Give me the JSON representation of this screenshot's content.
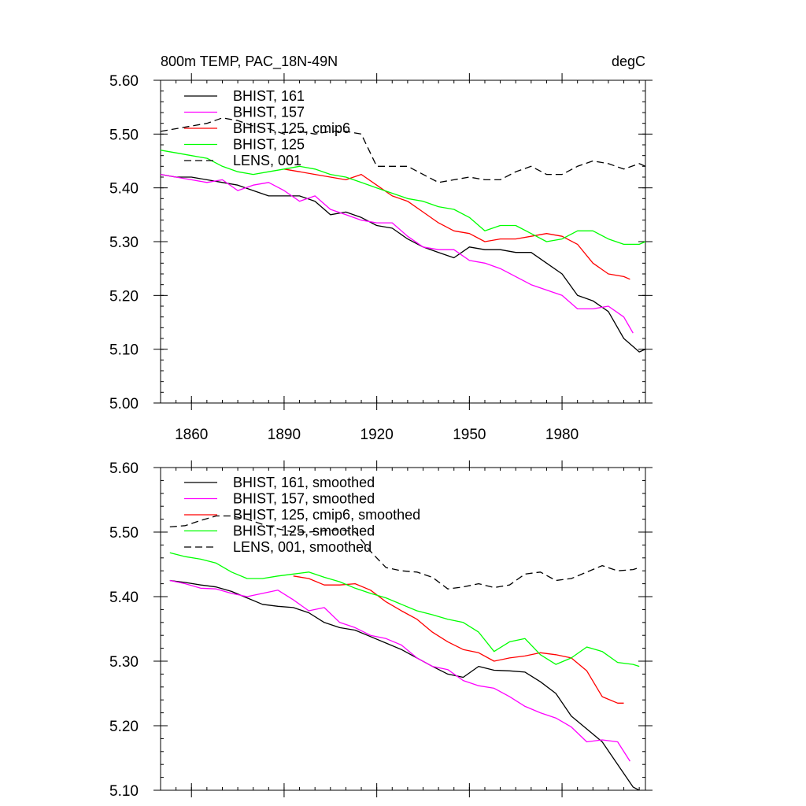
{
  "chart_data": [
    {
      "type": "line",
      "title": "800m TEMP, PAC_18N-49N",
      "units": "degC",
      "xlim": [
        1850,
        2007
      ],
      "ylim": [
        5.0,
        5.6
      ],
      "xticks": [
        1860,
        1890,
        1920,
        1950,
        1980
      ],
      "xticklabels": [
        "1860",
        "1890",
        "1920",
        "1950",
        "1980"
      ],
      "yticks": [
        5.0,
        5.1,
        5.2,
        5.3,
        5.4,
        5.5,
        5.6
      ],
      "yticklabels": [
        "5.00",
        "5.10",
        "5.20",
        "5.30",
        "5.40",
        "5.50",
        "5.60"
      ],
      "legend_position": "top-left",
      "series": [
        {
          "name": "BHIST, 161",
          "color": "#000000",
          "dash": "solid",
          "x": [
            1850,
            1855,
            1860,
            1865,
            1870,
            1875,
            1880,
            1885,
            1890,
            1895,
            1900,
            1905,
            1910,
            1915,
            1920,
            1925,
            1930,
            1935,
            1940,
            1945,
            1950,
            1955,
            1960,
            1965,
            1970,
            1975,
            1980,
            1985,
            1990,
            1995,
            2000,
            2005,
            2007
          ],
          "values": [
            5.425,
            5.42,
            5.42,
            5.415,
            5.41,
            5.405,
            5.395,
            5.385,
            5.385,
            5.385,
            5.375,
            5.35,
            5.355,
            5.345,
            5.33,
            5.325,
            5.305,
            5.29,
            5.28,
            5.27,
            5.29,
            5.285,
            5.285,
            5.28,
            5.28,
            5.26,
            5.24,
            5.2,
            5.19,
            5.17,
            5.12,
            5.095,
            5.1
          ]
        },
        {
          "name": "BHIST, 157",
          "color": "#ff00ff",
          "dash": "solid",
          "x": [
            1850,
            1855,
            1860,
            1865,
            1870,
            1875,
            1880,
            1885,
            1890,
            1895,
            1900,
            1905,
            1910,
            1915,
            1920,
            1925,
            1930,
            1935,
            1940,
            1945,
            1950,
            1955,
            1960,
            1965,
            1970,
            1975,
            1980,
            1985,
            1990,
            1995,
            2000,
            2003
          ],
          "values": [
            5.425,
            5.42,
            5.415,
            5.41,
            5.415,
            5.395,
            5.405,
            5.41,
            5.395,
            5.375,
            5.385,
            5.36,
            5.35,
            5.34,
            5.335,
            5.335,
            5.31,
            5.29,
            5.285,
            5.285,
            5.265,
            5.26,
            5.25,
            5.235,
            5.22,
            5.21,
            5.2,
            5.175,
            5.175,
            5.18,
            5.16,
            5.13
          ]
        },
        {
          "name": "BHIST, 125, cmip6",
          "color": "#ff0000",
          "dash": "solid",
          "x": [
            1890,
            1895,
            1900,
            1905,
            1910,
            1915,
            1920,
            1925,
            1930,
            1935,
            1940,
            1945,
            1950,
            1955,
            1960,
            1965,
            1970,
            1975,
            1980,
            1985,
            1990,
            1995,
            2000,
            2002
          ],
          "values": [
            5.435,
            5.43,
            5.425,
            5.42,
            5.415,
            5.425,
            5.405,
            5.385,
            5.375,
            5.355,
            5.335,
            5.32,
            5.315,
            5.3,
            5.305,
            5.305,
            5.31,
            5.315,
            5.31,
            5.295,
            5.26,
            5.24,
            5.235,
            5.23
          ]
        },
        {
          "name": "BHIST, 125",
          "color": "#00ff00",
          "dash": "solid",
          "x": [
            1850,
            1855,
            1860,
            1865,
            1870,
            1875,
            1880,
            1885,
            1890,
            1895,
            1900,
            1905,
            1910,
            1915,
            1920,
            1925,
            1930,
            1935,
            1940,
            1945,
            1950,
            1955,
            1960,
            1965,
            1970,
            1975,
            1980,
            1985,
            1990,
            1995,
            2000,
            2005,
            2007
          ],
          "values": [
            5.47,
            5.465,
            5.46,
            5.455,
            5.44,
            5.43,
            5.425,
            5.43,
            5.435,
            5.44,
            5.435,
            5.425,
            5.42,
            5.41,
            5.4,
            5.39,
            5.38,
            5.375,
            5.365,
            5.36,
            5.345,
            5.32,
            5.33,
            5.33,
            5.315,
            5.3,
            5.305,
            5.32,
            5.32,
            5.305,
            5.295,
            5.295,
            5.3
          ]
        },
        {
          "name": "LENS, 001",
          "color": "#000000",
          "dash": "dashed",
          "x": [
            1850,
            1855,
            1860,
            1865,
            1870,
            1875,
            1880,
            1885,
            1890,
            1895,
            1900,
            1905,
            1910,
            1915,
            1920,
            1925,
            1930,
            1935,
            1940,
            1945,
            1950,
            1955,
            1960,
            1965,
            1970,
            1975,
            1980,
            1985,
            1990,
            1995,
            2000,
            2005,
            2007
          ],
          "values": [
            5.505,
            5.51,
            5.515,
            5.52,
            5.53,
            5.525,
            5.515,
            5.51,
            5.5,
            5.505,
            5.5,
            5.505,
            5.505,
            5.5,
            5.44,
            5.44,
            5.44,
            5.425,
            5.41,
            5.415,
            5.42,
            5.415,
            5.415,
            5.43,
            5.44,
            5.425,
            5.425,
            5.44,
            5.45,
            5.445,
            5.435,
            5.445,
            5.44
          ]
        }
      ]
    },
    {
      "type": "line",
      "title": "",
      "xlim": [
        1850,
        2007
      ],
      "ylim": [
        5.1,
        5.6
      ],
      "xticks": [
        1860,
        1890,
        1920,
        1950,
        1980
      ],
      "yticks": [
        5.1,
        5.2,
        5.3,
        5.4,
        5.5,
        5.6
      ],
      "yticklabels": [
        "5.10",
        "5.20",
        "5.30",
        "5.40",
        "5.50",
        "5.60"
      ],
      "legend_position": "top-left",
      "series": [
        {
          "name": "BHIST, 161, smoothed",
          "color": "#000000",
          "dash": "solid",
          "x": [
            1853,
            1858,
            1863,
            1868,
            1873,
            1878,
            1883,
            1888,
            1893,
            1898,
            1903,
            1908,
            1913,
            1918,
            1923,
            1928,
            1933,
            1938,
            1943,
            1948,
            1953,
            1958,
            1963,
            1968,
            1973,
            1978,
            1983,
            1988,
            1993,
            1998,
            2003,
            2005
          ],
          "values": [
            5.425,
            5.422,
            5.418,
            5.415,
            5.408,
            5.398,
            5.388,
            5.385,
            5.383,
            5.375,
            5.36,
            5.352,
            5.348,
            5.338,
            5.328,
            5.318,
            5.305,
            5.292,
            5.28,
            5.275,
            5.292,
            5.286,
            5.285,
            5.283,
            5.268,
            5.25,
            5.215,
            5.195,
            5.175,
            5.14,
            5.105,
            5.1
          ]
        },
        {
          "name": "BHIST, 157, smoothed",
          "color": "#ff00ff",
          "dash": "solid",
          "x": [
            1853,
            1858,
            1863,
            1868,
            1873,
            1878,
            1883,
            1888,
            1893,
            1898,
            1903,
            1908,
            1913,
            1918,
            1923,
            1928,
            1933,
            1938,
            1943,
            1948,
            1953,
            1958,
            1963,
            1968,
            1973,
            1978,
            1983,
            1988,
            1993,
            1998,
            2002
          ],
          "values": [
            5.425,
            5.42,
            5.413,
            5.412,
            5.405,
            5.4,
            5.405,
            5.41,
            5.395,
            5.378,
            5.383,
            5.36,
            5.352,
            5.34,
            5.335,
            5.325,
            5.305,
            5.292,
            5.287,
            5.27,
            5.262,
            5.258,
            5.245,
            5.23,
            5.22,
            5.212,
            5.198,
            5.175,
            5.178,
            5.175,
            5.145
          ]
        },
        {
          "name": "BHIST, 125, cmip6, smoothed",
          "color": "#ff0000",
          "dash": "solid",
          "x": [
            1893,
            1898,
            1903,
            1908,
            1913,
            1918,
            1923,
            1928,
            1933,
            1938,
            1943,
            1948,
            1953,
            1958,
            1963,
            1968,
            1973,
            1978,
            1983,
            1988,
            1993,
            1998,
            2000
          ],
          "values": [
            5.432,
            5.428,
            5.418,
            5.418,
            5.42,
            5.41,
            5.392,
            5.378,
            5.365,
            5.345,
            5.33,
            5.318,
            5.313,
            5.3,
            5.305,
            5.308,
            5.313,
            5.31,
            5.305,
            5.285,
            5.245,
            5.235,
            5.235
          ]
        },
        {
          "name": "BHIST, 125, smoothed",
          "color": "#00ff00",
          "dash": "solid",
          "x": [
            1853,
            1858,
            1863,
            1868,
            1873,
            1878,
            1883,
            1888,
            1893,
            1898,
            1903,
            1908,
            1913,
            1918,
            1923,
            1928,
            1933,
            1938,
            1943,
            1948,
            1953,
            1958,
            1963,
            1968,
            1973,
            1978,
            1983,
            1988,
            1993,
            1998,
            2003,
            2005
          ],
          "values": [
            5.468,
            5.462,
            5.458,
            5.452,
            5.438,
            5.428,
            5.428,
            5.432,
            5.435,
            5.438,
            5.43,
            5.423,
            5.413,
            5.405,
            5.398,
            5.388,
            5.378,
            5.372,
            5.365,
            5.36,
            5.345,
            5.315,
            5.33,
            5.335,
            5.31,
            5.295,
            5.305,
            5.322,
            5.315,
            5.298,
            5.295,
            5.292
          ]
        },
        {
          "name": "LENS, 001, smoothed",
          "color": "#000000",
          "dash": "dashed",
          "x": [
            1853,
            1858,
            1863,
            1868,
            1873,
            1878,
            1883,
            1888,
            1893,
            1898,
            1903,
            1908,
            1913,
            1918,
            1923,
            1928,
            1933,
            1938,
            1943,
            1948,
            1953,
            1958,
            1963,
            1968,
            1973,
            1978,
            1983,
            1988,
            1993,
            1998,
            2003,
            2005
          ],
          "values": [
            5.508,
            5.51,
            5.518,
            5.525,
            5.525,
            5.52,
            5.512,
            5.505,
            5.5,
            5.5,
            5.502,
            5.504,
            5.5,
            5.47,
            5.445,
            5.44,
            5.438,
            5.43,
            5.412,
            5.415,
            5.42,
            5.414,
            5.418,
            5.435,
            5.438,
            5.425,
            5.428,
            5.438,
            5.448,
            5.44,
            5.442,
            5.445
          ]
        }
      ]
    }
  ]
}
